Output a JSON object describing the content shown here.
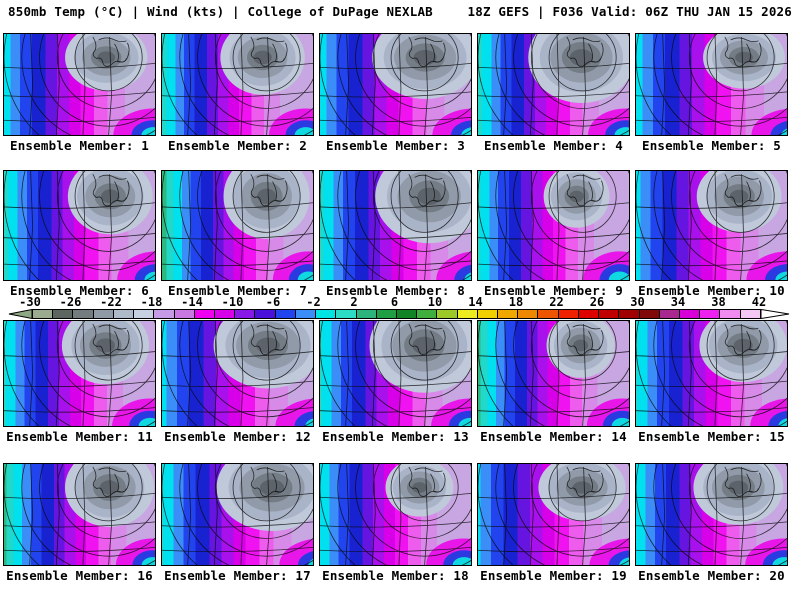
{
  "header": {
    "left": "850mb Temp (°C) | Wind (kts) | College of DuPage NEXLAB",
    "right": "18Z GEFS | F036 Valid: 06Z THU JAN 15 2026"
  },
  "panels": {
    "label_prefix": "Ensemble Member:",
    "members": [
      {
        "id": 1,
        "label": "Ensemble Member: 1"
      },
      {
        "id": 2,
        "label": "Ensemble Member: 2"
      },
      {
        "id": 3,
        "label": "Ensemble Member: 3"
      },
      {
        "id": 4,
        "label": "Ensemble Member: 4"
      },
      {
        "id": 5,
        "label": "Ensemble Member: 5"
      },
      {
        "id": 6,
        "label": "Ensemble Member: 6"
      },
      {
        "id": 7,
        "label": "Ensemble Member: 7"
      },
      {
        "id": 8,
        "label": "Ensemble Member: 8"
      },
      {
        "id": 9,
        "label": "Ensemble Member: 9"
      },
      {
        "id": 10,
        "label": "Ensemble Member: 10"
      },
      {
        "id": 11,
        "label": "Ensemble Member: 11"
      },
      {
        "id": 12,
        "label": "Ensemble Member: 12"
      },
      {
        "id": 13,
        "label": "Ensemble Member: 13"
      },
      {
        "id": 14,
        "label": "Ensemble Member: 14"
      },
      {
        "id": 15,
        "label": "Ensemble Member: 15"
      },
      {
        "id": 16,
        "label": "Ensemble Member: 16"
      },
      {
        "id": 17,
        "label": "Ensemble Member: 17"
      },
      {
        "id": 18,
        "label": "Ensemble Member: 18"
      },
      {
        "id": 19,
        "label": "Ensemble Member: 19"
      },
      {
        "id": 20,
        "label": "Ensemble Member: 20"
      }
    ]
  },
  "colorbar": {
    "unit": "°C",
    "ticks": [
      "-30",
      "-26",
      "-22",
      "-18",
      "-14",
      "-10",
      "-6",
      "-2",
      "2",
      "6",
      "10",
      "14",
      "18",
      "22",
      "26",
      "30",
      "34",
      "38",
      "42"
    ],
    "segment_step_degC": 2,
    "segment_colors": [
      "#9bab90",
      "#5d6660",
      "#757c80",
      "#8f9aa6",
      "#aebac8",
      "#c6d0e0",
      "#c79ae8",
      "#c878e0",
      "#f000f0",
      "#d800e8",
      "#8818e8",
      "#4810d8",
      "#2244ee",
      "#3b8ef8",
      "#00e4e4",
      "#2cdcc4",
      "#2cb47c",
      "#1f9e44",
      "#128426",
      "#3fae3c",
      "#9cc828",
      "#ecec20",
      "#f0d000",
      "#f0a800",
      "#ee8800",
      "#ee5500",
      "#ee2200",
      "#dd0000",
      "#c00000",
      "#a00000",
      "#800808",
      "#a82890",
      "#d800d8",
      "#ee22ee",
      "#f08cf0",
      "#f4c8f4"
    ],
    "left_arrow_color": "#8fa884",
    "right_arrow_color": "#ffffff"
  },
  "map": {
    "bands": [
      [
        "#18a050",
        3
      ],
      [
        "#2cb87e",
        4
      ],
      [
        "#22d8c8",
        4
      ],
      [
        "#00e0ee",
        5
      ],
      [
        "#3b8ef8",
        5
      ],
      [
        "#2244ee",
        6
      ],
      [
        "#1822d0",
        7
      ],
      [
        "#6614e0",
        6
      ],
      [
        "#a810ec",
        6
      ],
      [
        "#d800e8",
        6
      ],
      [
        "#f012f0",
        7
      ],
      [
        "#ee5cee",
        7
      ],
      [
        "#d88ae8",
        9
      ],
      [
        "#c8a6e2",
        25
      ]
    ],
    "cold_pool": [
      [
        "#bfc9da",
        46,
        38
      ],
      [
        "#aab4c8",
        36,
        29
      ],
      [
        "#919aa8",
        27,
        21
      ],
      [
        "#747c86",
        17,
        13
      ],
      [
        "#5c636a",
        10,
        7
      ]
    ],
    "corner_patch": [
      [
        "#e816e8",
        40,
        27
      ],
      [
        "#2a3ae0",
        22,
        15
      ],
      [
        "#10d8e0",
        12,
        8
      ]
    ],
    "line_color": "#0a0a0a"
  },
  "colors": {
    "background": "#ffffff",
    "text": "#000000",
    "panel_border": "#000000"
  }
}
